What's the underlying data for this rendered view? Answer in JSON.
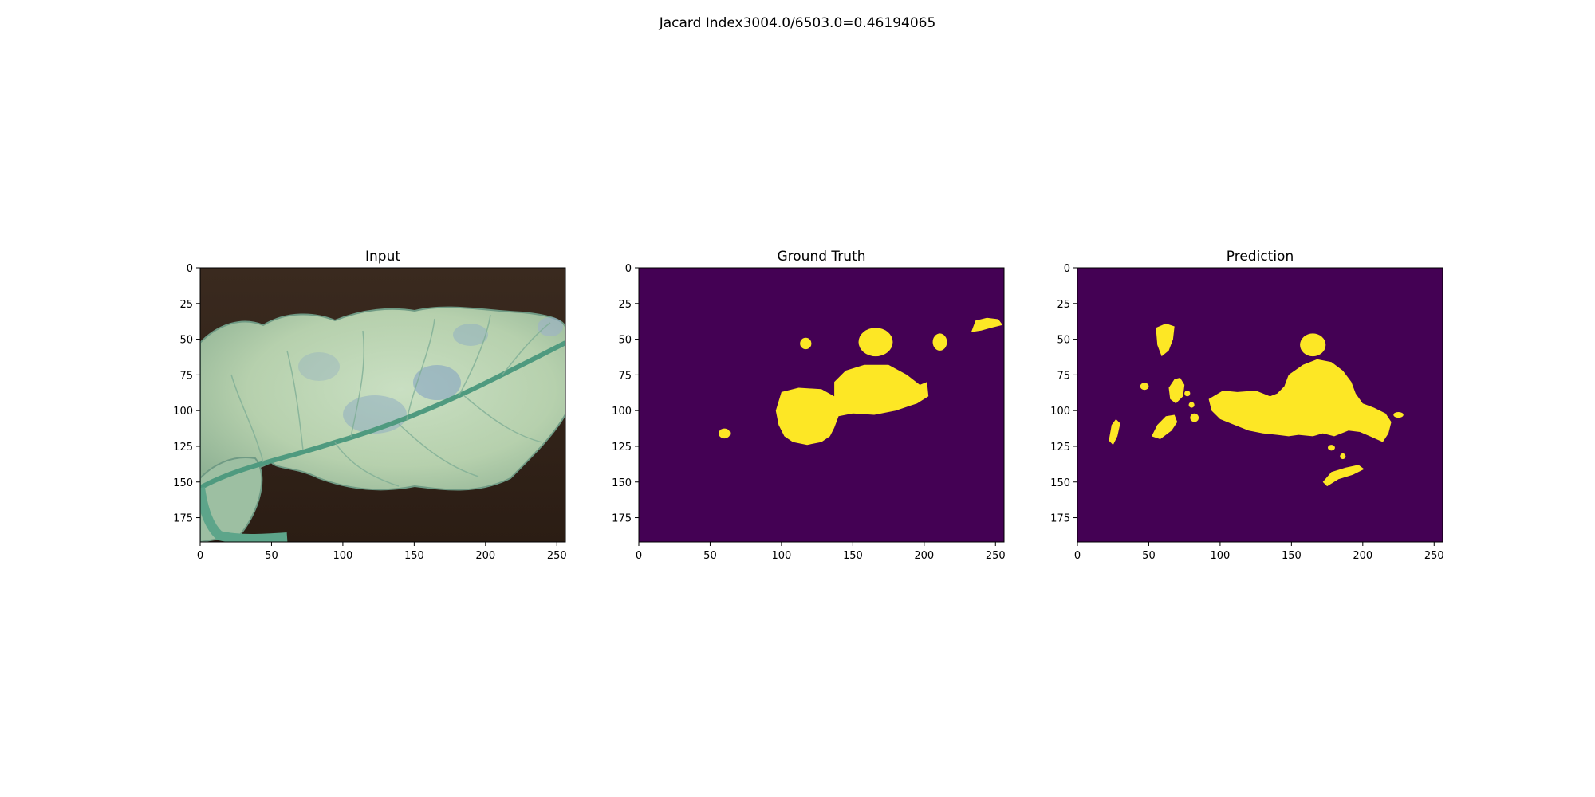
{
  "figure": {
    "suptitle": "Jacard Index3004.0/6503.0=0.46194065"
  },
  "chart_data": [
    {
      "type": "image",
      "title": "Input",
      "xticks": [
        0,
        50,
        100,
        150,
        200,
        250
      ],
      "yticks": [
        0,
        25,
        50,
        75,
        100,
        125,
        150,
        175
      ],
      "xlim": [
        0,
        256
      ],
      "ylim": [
        192,
        0
      ],
      "content": "photo of a leaf on dark soil"
    },
    {
      "type": "heatmap",
      "title": "Ground Truth",
      "xticks": [
        0,
        50,
        100,
        150,
        200,
        250
      ],
      "yticks": [
        0,
        25,
        50,
        75,
        100,
        125,
        150,
        175
      ],
      "xlim": [
        0,
        256
      ],
      "ylim": [
        192,
        0
      ],
      "colors": {
        "background": "#440154",
        "foreground": "#fde725"
      },
      "regions": [
        {
          "shape": "polygon",
          "points": [
            [
              100,
              87
            ],
            [
              112,
              84
            ],
            [
              128,
              85
            ],
            [
              137,
              90
            ],
            [
              137,
              80
            ],
            [
              145,
              72
            ],
            [
              158,
              68
            ],
            [
              175,
              68
            ],
            [
              188,
              75
            ],
            [
              197,
              82
            ],
            [
              202,
              80
            ],
            [
              203,
              90
            ],
            [
              195,
              95
            ],
            [
              180,
              100
            ],
            [
              165,
              103
            ],
            [
              150,
              102
            ],
            [
              140,
              104
            ],
            [
              137,
              112
            ],
            [
              134,
              118
            ],
            [
              128,
              122
            ],
            [
              118,
              124
            ],
            [
              108,
              122
            ],
            [
              102,
              118
            ],
            [
              98,
              110
            ],
            [
              96,
              100
            ]
          ]
        },
        {
          "shape": "ellipse",
          "cx": 166,
          "cy": 52,
          "rx": 12,
          "ry": 10
        },
        {
          "shape": "ellipse",
          "cx": 117,
          "cy": 53,
          "rx": 4,
          "ry": 4
        },
        {
          "shape": "ellipse",
          "cx": 211,
          "cy": 52,
          "rx": 5,
          "ry": 6
        },
        {
          "shape": "polygon",
          "points": [
            [
              233,
              45
            ],
            [
              236,
              37
            ],
            [
              244,
              35
            ],
            [
              252,
              36
            ],
            [
              255,
              40
            ],
            [
              247,
              42
            ],
            [
              240,
              44
            ]
          ]
        },
        {
          "shape": "ellipse",
          "cx": 60,
          "cy": 116,
          "rx": 4,
          "ry": 3.5
        }
      ]
    },
    {
      "type": "heatmap",
      "title": "Prediction",
      "xticks": [
        0,
        50,
        100,
        150,
        200,
        250
      ],
      "yticks": [
        0,
        25,
        50,
        75,
        100,
        125,
        150,
        175
      ],
      "xlim": [
        0,
        256
      ],
      "ylim": [
        192,
        0
      ],
      "colors": {
        "background": "#440154",
        "foreground": "#fde725"
      },
      "regions": [
        {
          "shape": "polygon",
          "points": [
            [
              92,
              92
            ],
            [
              102,
              86
            ],
            [
              112,
              87
            ],
            [
              125,
              86
            ],
            [
              135,
              90
            ],
            [
              140,
              88
            ],
            [
              145,
              83
            ],
            [
              148,
              75
            ],
            [
              158,
              68
            ],
            [
              168,
              64
            ],
            [
              178,
              66
            ],
            [
              186,
              72
            ],
            [
              192,
              80
            ],
            [
              195,
              88
            ],
            [
              200,
              95
            ],
            [
              208,
              98
            ],
            [
              216,
              102
            ],
            [
              220,
              108
            ],
            [
              218,
              116
            ],
            [
              214,
              122
            ],
            [
              205,
              118
            ],
            [
              198,
              115
            ],
            [
              190,
              114
            ],
            [
              180,
              118
            ],
            [
              172,
              116
            ],
            [
              165,
              118
            ],
            [
              155,
              117
            ],
            [
              148,
              118
            ],
            [
              140,
              117
            ],
            [
              130,
              116
            ],
            [
              120,
              114
            ],
            [
              110,
              110
            ],
            [
              100,
              106
            ],
            [
              94,
              100
            ]
          ]
        },
        {
          "shape": "polygon",
          "points": [
            [
              52,
              118
            ],
            [
              56,
              110
            ],
            [
              62,
              104
            ],
            [
              68,
              103
            ],
            [
              70,
              108
            ],
            [
              66,
              114
            ],
            [
              58,
              120
            ]
          ]
        },
        {
          "shape": "polygon",
          "points": [
            [
              64,
              84
            ],
            [
              68,
              78
            ],
            [
              72,
              77
            ],
            [
              75,
              82
            ],
            [
              74,
              90
            ],
            [
              69,
              95
            ],
            [
              65,
              92
            ]
          ]
        },
        {
          "shape": "polygon",
          "points": [
            [
              55,
              42
            ],
            [
              62,
              39
            ],
            [
              68,
              41
            ],
            [
              67,
              50
            ],
            [
              64,
              58
            ],
            [
              59,
              62
            ],
            [
              56,
              54
            ]
          ]
        },
        {
          "shape": "ellipse",
          "cx": 165,
          "cy": 54,
          "rx": 9,
          "ry": 8
        },
        {
          "shape": "polygon",
          "points": [
            [
              172,
              150
            ],
            [
              178,
              143
            ],
            [
              188,
              140
            ],
            [
              197,
              138
            ],
            [
              201,
              141
            ],
            [
              193,
              145
            ],
            [
              183,
              148
            ],
            [
              175,
              153
            ]
          ]
        },
        {
          "shape": "polygon",
          "points": [
            [
              22,
              121
            ],
            [
              24,
              110
            ],
            [
              27,
              106
            ],
            [
              30,
              109
            ],
            [
              28,
              118
            ],
            [
              25,
              124
            ]
          ]
        },
        {
          "shape": "ellipse",
          "cx": 47,
          "cy": 83,
          "rx": 3,
          "ry": 2.5
        },
        {
          "shape": "ellipse",
          "cx": 82,
          "cy": 105,
          "rx": 3,
          "ry": 3
        },
        {
          "shape": "ellipse",
          "cx": 178,
          "cy": 126,
          "rx": 2.5,
          "ry": 2
        },
        {
          "shape": "ellipse",
          "cx": 186,
          "cy": 132,
          "rx": 2,
          "ry": 2
        },
        {
          "shape": "ellipse",
          "cx": 225,
          "cy": 103,
          "rx": 3.5,
          "ry": 2
        },
        {
          "shape": "ellipse",
          "cx": 80,
          "cy": 96,
          "rx": 2,
          "ry": 2
        },
        {
          "shape": "ellipse",
          "cx": 77,
          "cy": 88,
          "rx": 2,
          "ry": 2
        }
      ]
    }
  ]
}
